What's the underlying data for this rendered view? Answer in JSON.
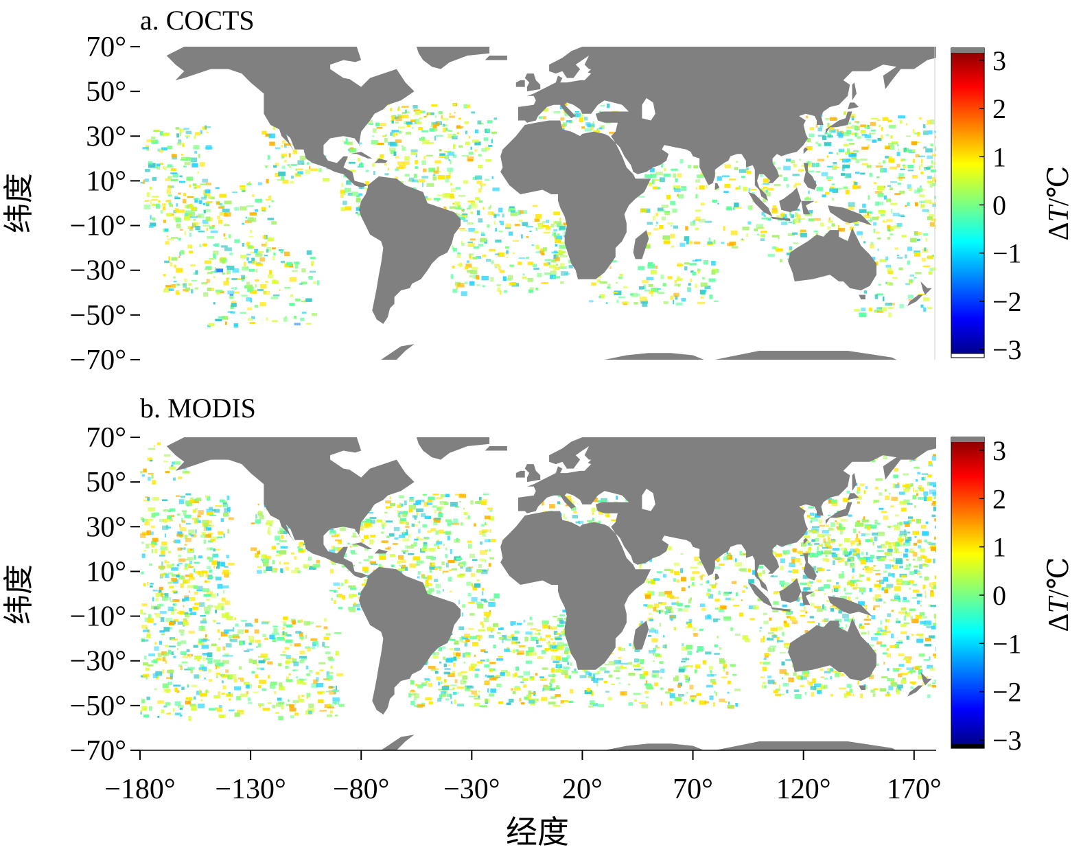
{
  "panels": [
    {
      "id": "a",
      "title": "a. COCTS",
      "ylabel": "纬度",
      "colorbar": {
        "label_prefix": "Δ",
        "label_var": "T",
        "label_unit": "/℃",
        "ticks": [
          "3",
          "2",
          "1",
          "0",
          "−1",
          "−2",
          "−3"
        ]
      }
    },
    {
      "id": "b",
      "title": "b. MODIS",
      "ylabel": "纬度",
      "colorbar": {
        "label_prefix": "Δ",
        "label_var": "T",
        "label_unit": "/℃",
        "ticks": [
          "3",
          "2",
          "1",
          "0",
          "−1",
          "−2",
          "−3"
        ]
      }
    }
  ],
  "lat_ticks": [
    "70°",
    "50°",
    "30°",
    "10°",
    "−10°",
    "−30°",
    "−50°",
    "−70°"
  ],
  "lon_ticks": [
    "−180°",
    "−130°",
    "−80°",
    "−30°",
    "20°",
    "70°",
    "120°",
    "170°"
  ],
  "xlabel": "经度",
  "map_extent": {
    "lon_range": [
      -180,
      180
    ],
    "lat_range": [
      -70,
      70
    ]
  },
  "colormap": {
    "name": "jet",
    "range": [
      -3,
      3
    ],
    "stops": [
      "#00007f",
      "#0000ff",
      "#007fff",
      "#00ffff",
      "#7fff7f",
      "#ffff00",
      "#ff7f00",
      "#ff0000",
      "#7f0000"
    ],
    "over_color": "#808080",
    "under_color_a": "#ffffff",
    "under_color_b": "#000000"
  },
  "land_color": "#808080",
  "no_data_color": "#ffffff"
}
